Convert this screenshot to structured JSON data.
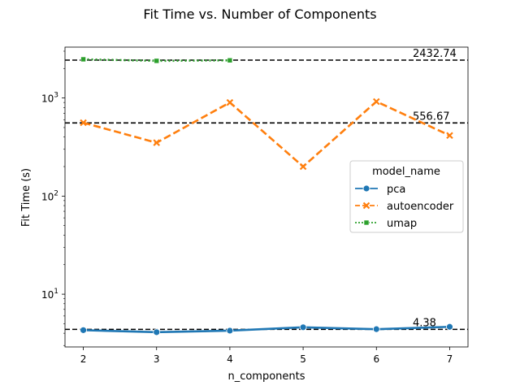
{
  "chart_data": {
    "type": "line",
    "title": "Fit Time vs. Number of Components",
    "xlabel": "n_components",
    "ylabel": "Fit Time (s)",
    "y_scale": "log",
    "xlim": [
      1.75,
      7.25
    ],
    "ylim": [
      2.9,
      3300
    ],
    "x_ticks": [
      2,
      3,
      4,
      5,
      6,
      7
    ],
    "y_major_ticks": [
      {
        "value": 10,
        "base": "10",
        "exp": "1"
      },
      {
        "value": 100,
        "base": "10",
        "exp": "2"
      },
      {
        "value": 1000,
        "base": "10",
        "exp": "3"
      }
    ],
    "grid": false,
    "legend": {
      "title": "model_name",
      "position": "center-right"
    },
    "series": [
      {
        "name": "pca",
        "color": "#1f77b4",
        "dash": "solid",
        "marker": "circle",
        "x": [
          2,
          3,
          4,
          5,
          6,
          7
        ],
        "y": [
          4.3,
          4.1,
          4.25,
          4.6,
          4.4,
          4.65
        ]
      },
      {
        "name": "autoencoder",
        "color": "#ff7f0e",
        "dash": "dashed",
        "marker": "x",
        "x": [
          2,
          3,
          4,
          5,
          6,
          7
        ],
        "y": [
          560,
          350,
          900,
          200,
          920,
          415
        ]
      },
      {
        "name": "umap",
        "color": "#2ca02c",
        "dash": "dotted",
        "marker": "square",
        "x": [
          2,
          3,
          4
        ],
        "y": [
          2480,
          2390,
          2420
        ]
      }
    ],
    "reference_lines": [
      {
        "value": 2432.74,
        "label": "2432.74",
        "color": "#000000",
        "dash": "dashed"
      },
      {
        "value": 556.67,
        "label": "556.67",
        "color": "#000000",
        "dash": "dashed"
      },
      {
        "value": 4.38,
        "label": "4.38",
        "color": "#000000",
        "dash": "dashed"
      }
    ]
  }
}
